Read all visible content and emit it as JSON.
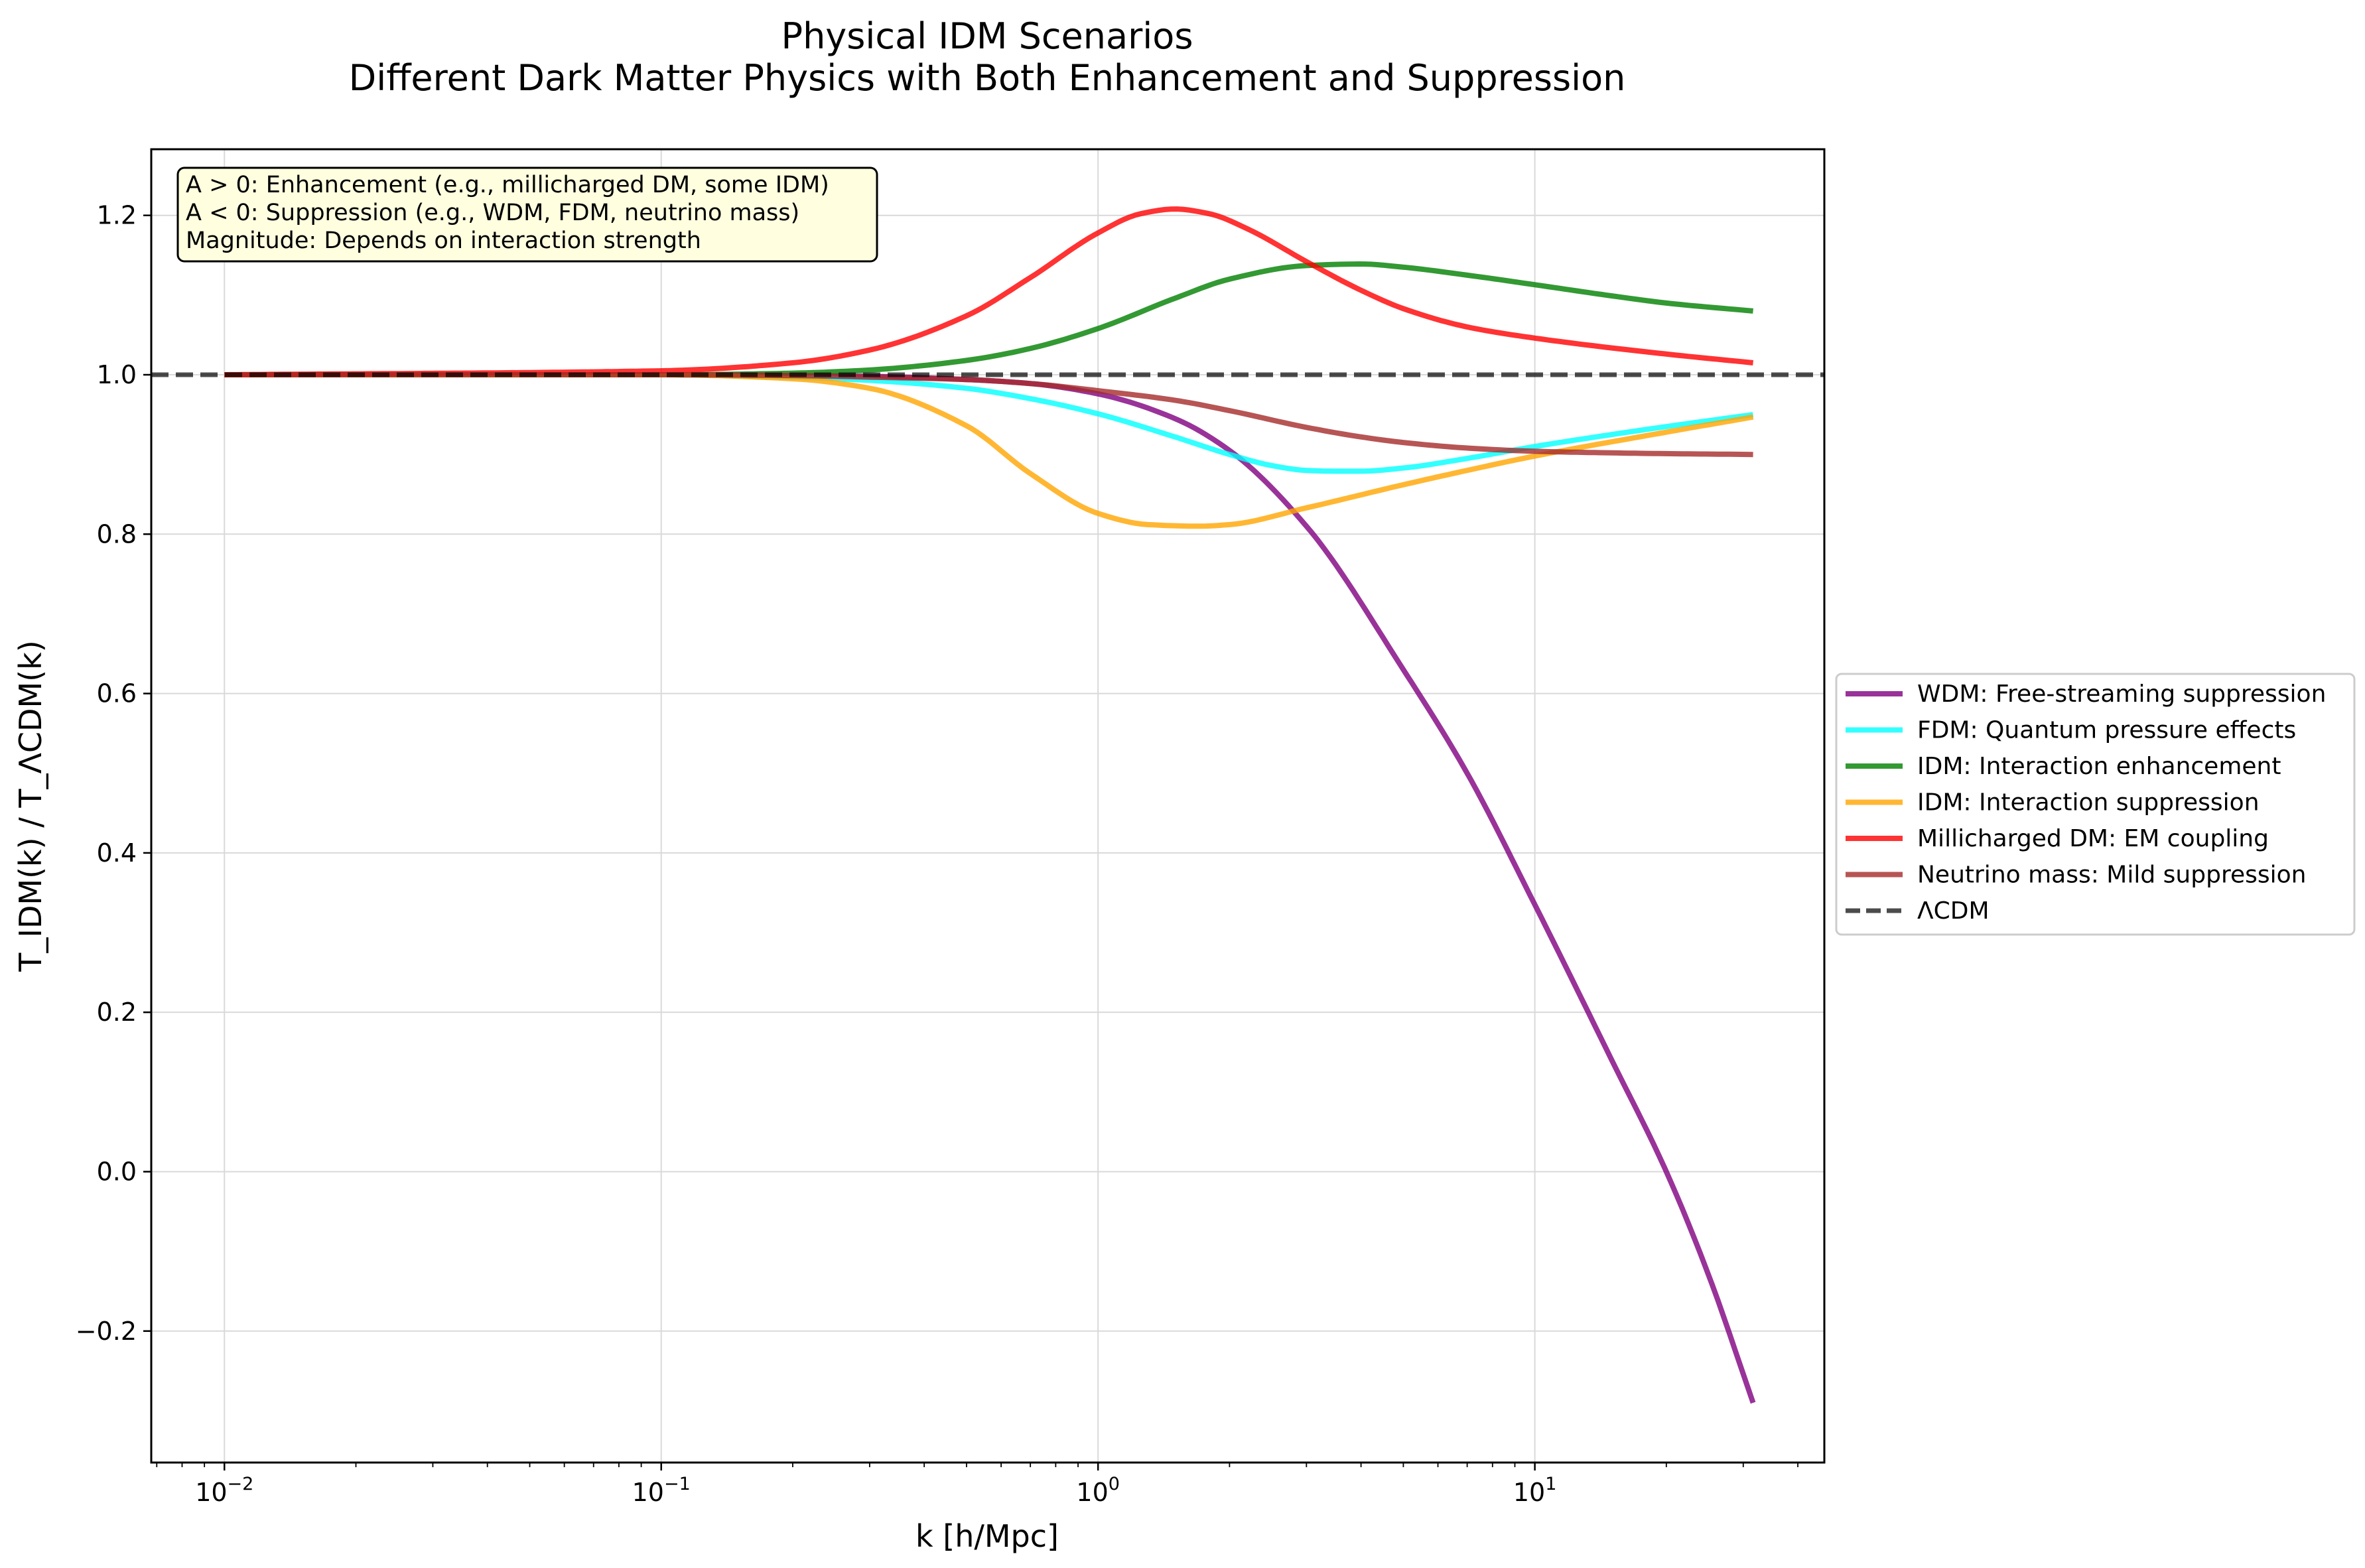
{
  "chart_data": {
    "type": "line",
    "title": "Physical IDM Scenarios",
    "subtitle": "Different Dark Matter Physics with Both Enhancement and Suppression",
    "xlabel": "k [h/Mpc]",
    "ylabel": "T_IDM(k) / T_ΛCDM(k)",
    "xscale": "log",
    "xlim": [
      0.0068,
      46
    ],
    "ylim": [
      -0.365,
      1.283
    ],
    "x_ticks": [
      {
        "value": 0.01,
        "base": "10",
        "exp": "−2"
      },
      {
        "value": 0.1,
        "base": "10",
        "exp": "−1"
      },
      {
        "value": 1,
        "base": "10",
        "exp": "0"
      },
      {
        "value": 10,
        "base": "10",
        "exp": "1"
      }
    ],
    "y_ticks": [
      {
        "value": -0.2,
        "label": "−0.2"
      },
      {
        "value": 0.0,
        "label": "0.0"
      },
      {
        "value": 0.2,
        "label": "0.2"
      },
      {
        "value": 0.4,
        "label": "0.4"
      },
      {
        "value": 0.6,
        "label": "0.6"
      },
      {
        "value": 0.8,
        "label": "0.8"
      },
      {
        "value": 1.0,
        "label": "1.0"
      },
      {
        "value": 1.2,
        "label": "1.2"
      }
    ],
    "grid": true,
    "legend_position": "center-right outside",
    "annotation": [
      "A > 0: Enhancement (e.g., millicharged DM, some IDM)",
      "A < 0: Suppression (e.g., WDM, FDM, neutrino mass)",
      "Magnitude: Depends on interaction strength"
    ],
    "series": [
      {
        "name": "WDM: Free-streaming suppression",
        "color": "#800080",
        "style": "solid",
        "x": [
          0.01,
          0.1,
          0.2,
          0.3,
          0.5,
          0.7,
          1.0,
          1.5,
          2.0,
          3.0,
          5.0,
          7.0,
          10.0,
          15.0,
          20.0,
          25.0,
          31.6
        ],
        "y": [
          1.0,
          1.0,
          0.999,
          0.998,
          0.994,
          0.989,
          0.976,
          0.945,
          0.905,
          0.81,
          0.63,
          0.5,
          0.335,
          0.14,
          0.0,
          -0.13,
          -0.29
        ]
      },
      {
        "name": "FDM: Quantum pressure effects",
        "color": "#00ffff",
        "style": "solid",
        "x": [
          0.01,
          0.1,
          0.2,
          0.3,
          0.5,
          0.7,
          1.0,
          1.5,
          2.0,
          2.5,
          3.0,
          3.5,
          4.0,
          5.0,
          7.0,
          10.0,
          15.0,
          20.0,
          31.6
        ],
        "y": [
          1.0,
          1.0,
          0.997,
          0.993,
          0.983,
          0.97,
          0.951,
          0.922,
          0.9,
          0.886,
          0.88,
          0.879,
          0.879,
          0.883,
          0.895,
          0.91,
          0.925,
          0.935,
          0.95
        ]
      },
      {
        "name": "IDM: Interaction enhancement",
        "color": "#008000",
        "style": "solid",
        "x": [
          0.01,
          0.1,
          0.2,
          0.3,
          0.5,
          0.7,
          1.0,
          1.5,
          2.0,
          3.0,
          4.0,
          5.0,
          7.0,
          10.0,
          15.0,
          20.0,
          31.6
        ],
        "y": [
          1.0,
          1.0,
          1.002,
          1.006,
          1.018,
          1.033,
          1.058,
          1.096,
          1.12,
          1.137,
          1.139,
          1.135,
          1.125,
          1.113,
          1.099,
          1.09,
          1.08
        ]
      },
      {
        "name": "IDM: Interaction suppression",
        "color": "#ffa500",
        "style": "solid",
        "x": [
          0.01,
          0.1,
          0.2,
          0.3,
          0.5,
          0.7,
          1.0,
          1.3,
          1.7,
          2.0,
          3.0,
          5.0,
          7.0,
          10.0,
          20.0,
          31.6
        ],
        "y": [
          1.0,
          1.0,
          0.995,
          0.983,
          0.936,
          0.876,
          0.826,
          0.812,
          0.81,
          0.812,
          0.833,
          0.862,
          0.88,
          0.898,
          0.928,
          0.947
        ]
      },
      {
        "name": "Millicharged DM: EM coupling",
        "color": "#ff0000",
        "style": "solid",
        "x": [
          0.01,
          0.1,
          0.2,
          0.3,
          0.5,
          0.7,
          1.0,
          1.25,
          1.5,
          1.8,
          2.2,
          3.0,
          4.0,
          5.0,
          7.0,
          10.0,
          20.0,
          31.6
        ],
        "y": [
          1.0,
          1.005,
          1.015,
          1.031,
          1.074,
          1.122,
          1.178,
          1.202,
          1.208,
          1.202,
          1.183,
          1.142,
          1.106,
          1.083,
          1.06,
          1.046,
          1.026,
          1.015
        ]
      },
      {
        "name": "Neutrino mass: Mild suppression",
        "color": "#a52a2a",
        "style": "solid",
        "x": [
          0.01,
          0.1,
          0.2,
          0.3,
          0.5,
          0.7,
          1.0,
          1.5,
          2.0,
          3.0,
          4.0,
          5.0,
          7.0,
          10.0,
          15.0,
          20.0,
          31.6
        ],
        "y": [
          1.0,
          1.0,
          0.999,
          0.997,
          0.994,
          0.989,
          0.98,
          0.968,
          0.955,
          0.934,
          0.922,
          0.915,
          0.908,
          0.904,
          0.902,
          0.901,
          0.9
        ]
      },
      {
        "name": "ΛCDM",
        "color": "#000000",
        "style": "dashed",
        "x": [
          0.0068,
          46
        ],
        "y": [
          1.0,
          1.0
        ]
      }
    ]
  }
}
